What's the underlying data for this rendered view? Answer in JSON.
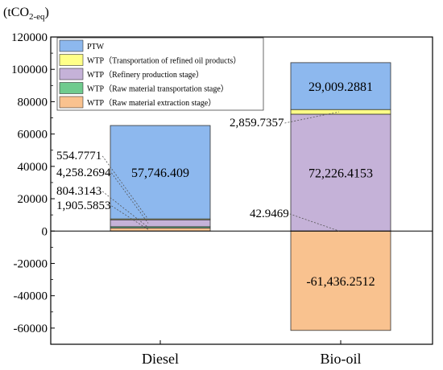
{
  "chart_data": {
    "type": "bar",
    "stacked": true,
    "unit_label": {
      "main": "(tCO",
      "sub": "2-eq",
      "close": ")"
    },
    "categories": [
      "Diesel",
      "Bio-oil"
    ],
    "ylim": [
      -70000,
      120000
    ],
    "yticks": [
      -60000,
      -40000,
      -20000,
      0,
      20000,
      40000,
      60000,
      80000,
      100000,
      120000
    ],
    "ytick_labels": [
      "-60000",
      "-40000",
      "-20000",
      "0",
      "20000",
      "40000",
      "60000",
      "80000",
      "100000",
      "120000"
    ],
    "grid": false,
    "legend_position": "top-left",
    "series": [
      {
        "name": "WTP（Raw material extraction stage）",
        "color": "#F9C28F",
        "values": [
          1905.5853,
          -61436.2512
        ]
      },
      {
        "name": "WTP（Raw material transportation stage）",
        "color": "#6FCB8E",
        "values": [
          804.3143,
          42.9469
        ]
      },
      {
        "name": "WTP（Refinery production stage）",
        "color": "#C5B2D8",
        "values": [
          4258.2694,
          72226.4153
        ]
      },
      {
        "name": "WTP（Transportation of refined oil products）",
        "color": "#FFFF88",
        "values": [
          554.7771,
          2859.7357
        ]
      },
      {
        "name": "PTW",
        "color": "#8DB8EE",
        "values": [
          57746.409,
          29009.2881
        ]
      }
    ],
    "legend_order": [
      4,
      3,
      2,
      1,
      0
    ],
    "annotations": {
      "Diesel": {
        "inside": [
          {
            "series": 4,
            "text": "57,746.409"
          }
        ],
        "callouts": [
          {
            "series": 3,
            "text": "554.7771"
          },
          {
            "series": 2,
            "text": "4,258.2694"
          },
          {
            "series": 1,
            "text": "804.3143"
          },
          {
            "series": 0,
            "text": "1,905.5853"
          }
        ]
      },
      "Bio-oil": {
        "inside": [
          {
            "series": 4,
            "text": "29,009.2881"
          },
          {
            "series": 2,
            "text": "72,226.4153"
          },
          {
            "series": 0,
            "text": "-61,436.2512"
          }
        ],
        "callouts": [
          {
            "series": 3,
            "text": "2,859.7357"
          },
          {
            "series": 1,
            "text": "42.9469"
          }
        ]
      }
    }
  }
}
